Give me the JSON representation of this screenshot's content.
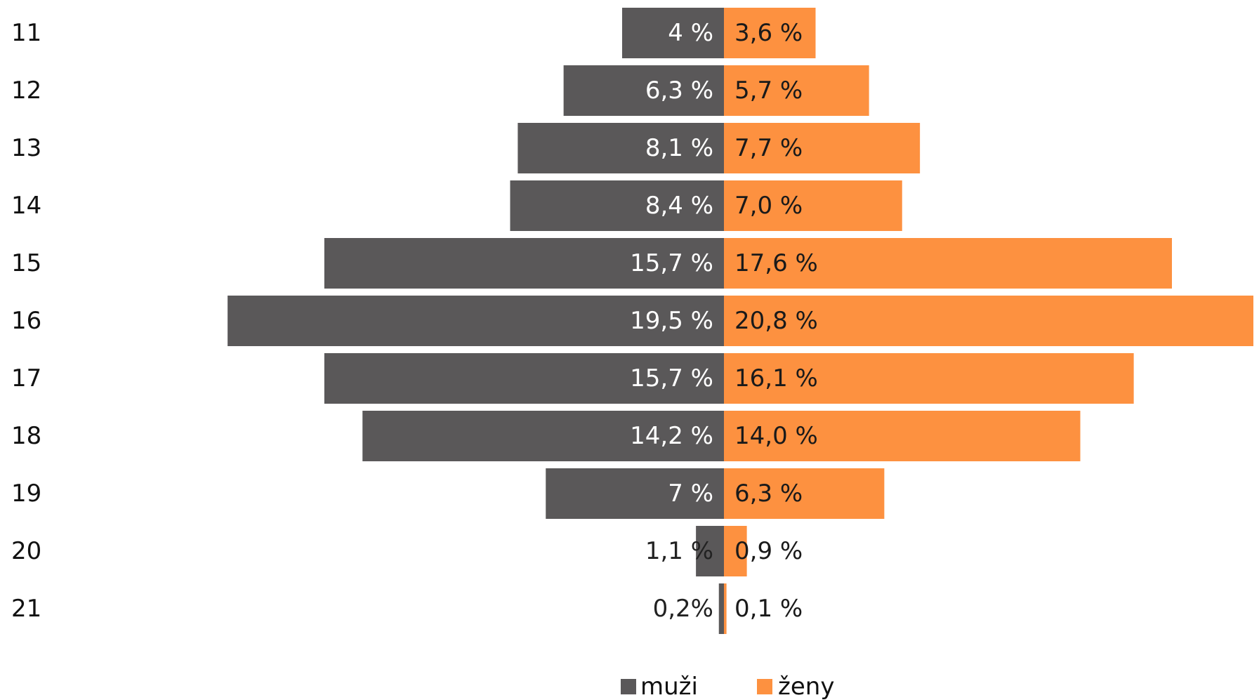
{
  "chart_data": {
    "type": "bar",
    "orientation": "horizontal",
    "layout": "population-pyramid",
    "title": "",
    "xlabel": "",
    "ylabel": "",
    "categories": [
      "11",
      "12",
      "13",
      "14",
      "15",
      "16",
      "17",
      "18",
      "19",
      "20",
      "21"
    ],
    "series": [
      {
        "name": "muži",
        "side": "left",
        "color": "#5a5859",
        "values": [
          4.0,
          6.3,
          8.1,
          8.4,
          15.7,
          19.5,
          15.7,
          14.2,
          7.0,
          1.1,
          0.2
        ],
        "labels": [
          "4 %",
          "6,3 %",
          "8,1 %",
          "8,4 %",
          "15,7 %",
          "19,5 %",
          "15,7 %",
          "14,2 %",
          "7 %",
          "1,1 %",
          "0,2%"
        ]
      },
      {
        "name": "ženy",
        "side": "right",
        "color": "#fd9140",
        "values": [
          3.6,
          5.7,
          7.7,
          7.0,
          17.6,
          20.8,
          16.1,
          14.0,
          6.3,
          0.9,
          0.1
        ],
        "labels": [
          "3,6 %",
          "5,7 %",
          "7,7 %",
          "7,0 %",
          "17,6 %",
          "20,8 %",
          "16,1 %",
          "14,0 %",
          "6,3 %",
          "0,9 %",
          "0,1 %"
        ]
      }
    ],
    "xlim": [
      -20.8,
      20.8
    ],
    "grid": false,
    "legend_position": "bottom-center"
  }
}
